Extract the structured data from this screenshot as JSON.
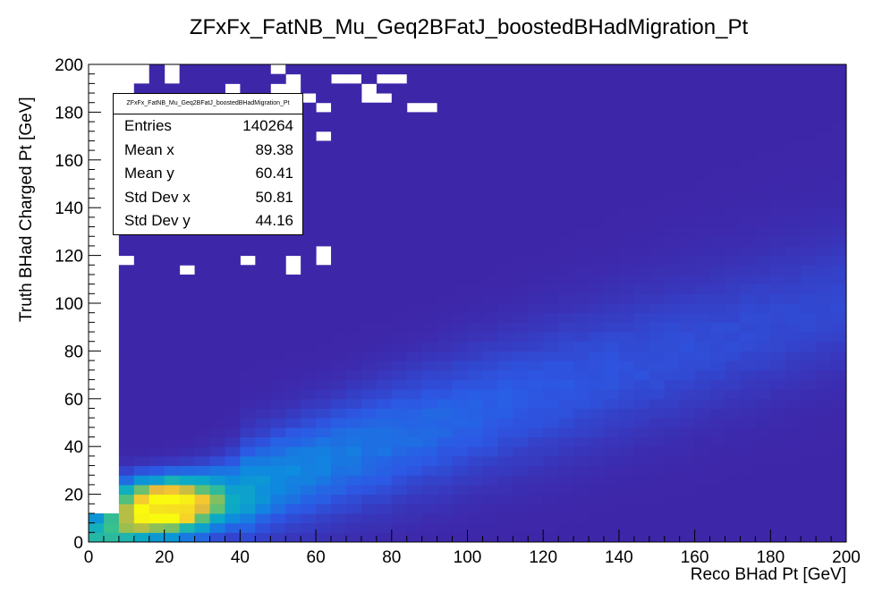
{
  "chart_data": {
    "type": "heatmap",
    "title": "ZFxFx_FatNB_Mu_Geq2BFatJ_boostedBHadMigration_Pt",
    "xlabel": "Reco BHad Pt [GeV]",
    "ylabel": "Truth BHad Charged Pt [GeV]",
    "xlim": [
      0,
      200
    ],
    "ylim": [
      0,
      200
    ],
    "bin_width": 4,
    "x_ticks": [
      "0",
      "20",
      "40",
      "60",
      "80",
      "100",
      "120",
      "140",
      "160",
      "180",
      "200"
    ],
    "y_ticks": [
      "0",
      "20",
      "40",
      "60",
      "80",
      "100",
      "120",
      "140",
      "160",
      "180",
      "200"
    ],
    "colormap": "viridis-like (ROOT kBird)",
    "colors": {
      "low": "#3b4ba8",
      "mid": "#0ca3cd",
      "high": "#f9fb0e"
    },
    "peak_region": {
      "x": [
        12,
        32
      ],
      "y": [
        12,
        24
      ]
    },
    "stats": {
      "title": "ZFxFx_FatNB_Mu_Geq2BFatJ_boostedBHadMigration_Pt",
      "rows": [
        {
          "label": "Entries",
          "value": "140264"
        },
        {
          "label": "Mean x",
          "value": "89.38"
        },
        {
          "label": "Mean y",
          "value": "60.41"
        },
        {
          "label": "Std Dev x",
          "value": "50.81"
        },
        {
          "label": "Std Dev y",
          "value": "44.16"
        }
      ]
    }
  }
}
